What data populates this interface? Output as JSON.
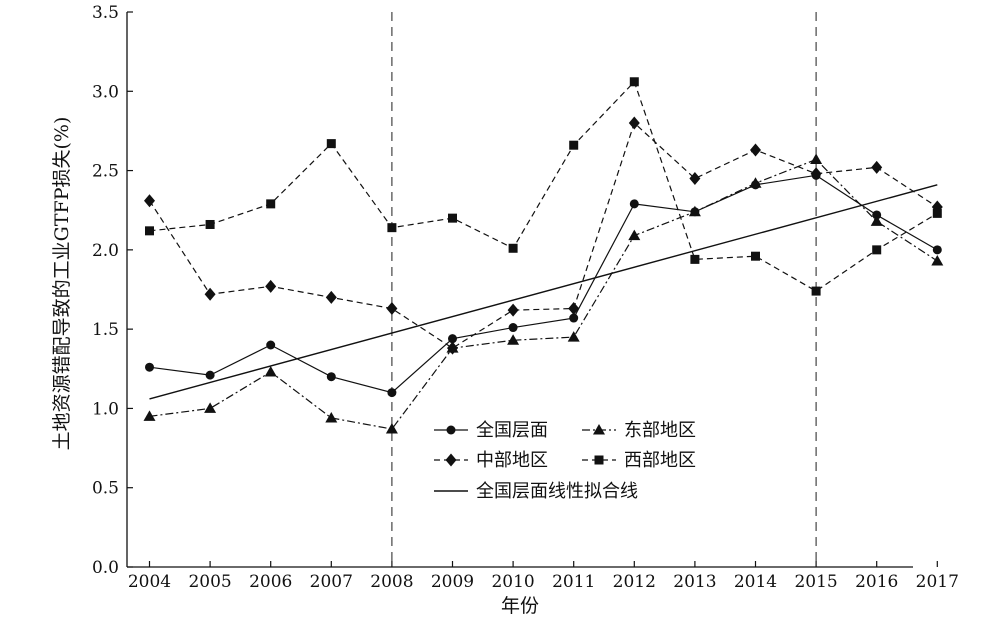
{
  "chart_data": {
    "type": "line",
    "title": "",
    "xlabel": "年份",
    "ylabel": "土地资源错配导致的工业GTFP损失(%)",
    "x": [
      "2004",
      "2005",
      "2006",
      "2007",
      "2008",
      "2009",
      "2010",
      "2011",
      "2012",
      "2013",
      "2014",
      "2015",
      "2016",
      "2017"
    ],
    "ylim": [
      0.0,
      3.5
    ],
    "yticks": [
      "0.0",
      "0.5",
      "1.0",
      "1.5",
      "2.0",
      "2.5",
      "3.0",
      "3.5"
    ],
    "reference_lines_x": [
      "2008",
      "2015"
    ],
    "grid": false,
    "legend_position": "center-bottom",
    "series": [
      {
        "name": "全国层面",
        "marker": "circle",
        "line": "solid",
        "values": [
          1.26,
          1.21,
          1.4,
          1.2,
          1.1,
          1.44,
          1.51,
          1.57,
          2.29,
          2.24,
          2.41,
          2.47,
          2.22,
          2.0
        ]
      },
      {
        "name": "东部地区",
        "marker": "triangle",
        "line": "dashdot",
        "values": [
          0.95,
          1.0,
          1.23,
          0.94,
          0.87,
          1.38,
          1.43,
          1.45,
          2.09,
          2.24,
          2.42,
          2.57,
          2.18,
          1.93
        ]
      },
      {
        "name": "中部地区",
        "marker": "diamond",
        "line": "dashed",
        "values": [
          2.31,
          1.72,
          1.77,
          1.7,
          1.63,
          1.38,
          1.62,
          1.63,
          2.8,
          2.45,
          2.63,
          2.48,
          2.52,
          2.27
        ]
      },
      {
        "name": "西部地区",
        "marker": "square",
        "line": "dashed",
        "values": [
          2.12,
          2.16,
          2.29,
          2.67,
          2.14,
          2.2,
          2.01,
          2.66,
          3.06,
          1.94,
          1.96,
          1.74,
          2.0,
          2.23
        ]
      }
    ],
    "fit_line": {
      "name": "全国层面线性拟合线",
      "start": 1.06,
      "end": 2.41
    }
  }
}
